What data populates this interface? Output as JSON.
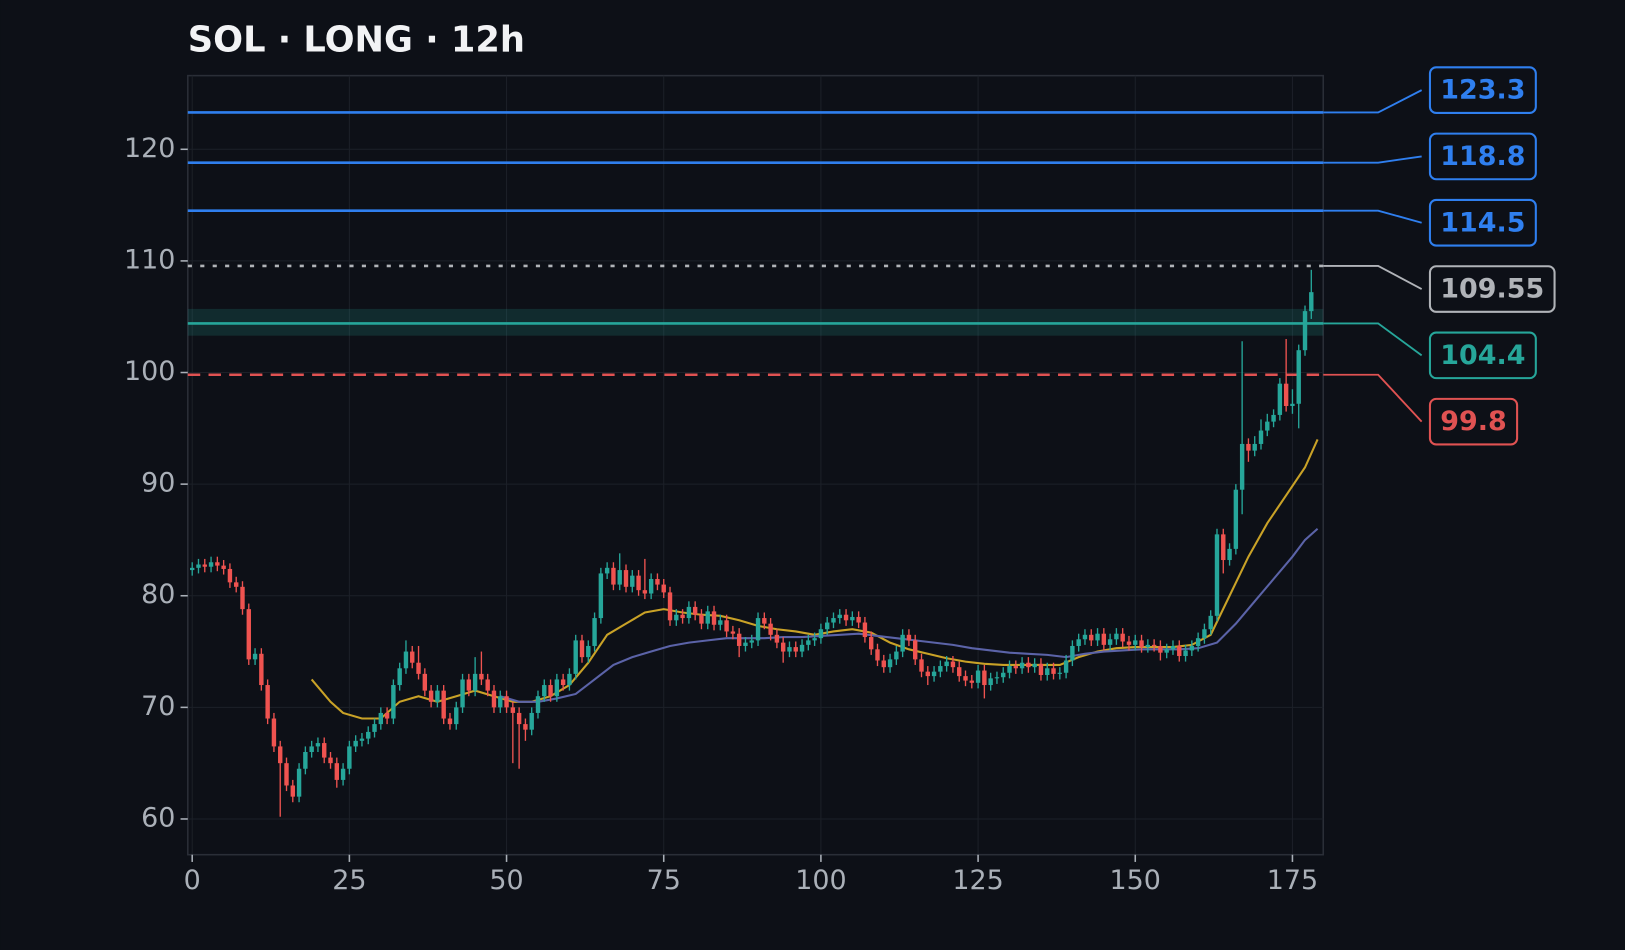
{
  "chart_data": {
    "type": "candlestick",
    "title": "SOL · LONG · 12h",
    "xlim": [
      -0.7,
      179.9
    ],
    "ylim": [
      56.8,
      126.6
    ],
    "xticks": [
      0,
      25,
      50,
      75,
      100,
      125,
      150,
      175
    ],
    "yticks": [
      60,
      70,
      80,
      90,
      100,
      110,
      120
    ],
    "grid": true,
    "up_color": "#26a69a",
    "down_color": "#ef5350",
    "x": [
      0,
      1,
      2,
      3,
      4,
      5,
      6,
      7,
      8,
      9,
      10,
      11,
      12,
      13,
      14,
      15,
      16,
      17,
      18,
      19,
      20,
      21,
      22,
      23,
      24,
      25,
      26,
      27,
      28,
      29,
      30,
      31,
      32,
      33,
      34,
      35,
      36,
      37,
      38,
      39,
      40,
      41,
      42,
      43,
      44,
      45,
      46,
      47,
      48,
      49,
      50,
      51,
      52,
      53,
      54,
      55,
      56,
      57,
      58,
      59,
      60,
      61,
      62,
      63,
      64,
      65,
      66,
      67,
      68,
      69,
      70,
      71,
      72,
      73,
      74,
      75,
      76,
      77,
      78,
      79,
      80,
      81,
      82,
      83,
      84,
      85,
      86,
      87,
      88,
      89,
      90,
      91,
      92,
      93,
      94,
      95,
      96,
      97,
      98,
      99,
      100,
      101,
      102,
      103,
      104,
      105,
      106,
      107,
      108,
      109,
      110,
      111,
      112,
      113,
      114,
      115,
      116,
      117,
      118,
      119,
      120,
      121,
      122,
      123,
      124,
      125,
      126,
      127,
      128,
      129,
      130,
      131,
      132,
      133,
      134,
      135,
      136,
      137,
      138,
      139,
      140,
      141,
      142,
      143,
      144,
      145,
      146,
      147,
      148,
      149,
      150,
      151,
      152,
      153,
      154,
      155,
      156,
      157,
      158,
      159,
      160,
      161,
      162,
      163,
      164,
      165,
      166,
      167,
      168,
      169,
      170,
      171,
      172,
      173,
      174,
      175,
      176,
      177,
      178
    ],
    "open": [
      82.3,
      82.5,
      82.8,
      82.6,
      83,
      82.7,
      82.4,
      81.2,
      80.8,
      78.8,
      74.3,
      74.8,
      72,
      69,
      66.5,
      65,
      63,
      62,
      64.5,
      66,
      66.5,
      66.8,
      65.5,
      65,
      63.5,
      64.5,
      66.5,
      67,
      67.2,
      67.8,
      68.5,
      69.5,
      69,
      72,
      73.5,
      75,
      74,
      73,
      71.5,
      70.5,
      71.5,
      69,
      68.5,
      70,
      72.5,
      71.5,
      73,
      72.5,
      71.5,
      70,
      71,
      70,
      69.5,
      68.5,
      68,
      69.5,
      71,
      72,
      71,
      72.5,
      72,
      73,
      76,
      74.5,
      75.5,
      78,
      82,
      82.5,
      81,
      82.3,
      80.8,
      81.8,
      80.5,
      80.2,
      81.5,
      81,
      80.3,
      77.8,
      78.3,
      78,
      79,
      78.3,
      77.5,
      78.6,
      77.4,
      77.8,
      76.8,
      76.6,
      75.5,
      75.8,
      76,
      78,
      77.5,
      76.5,
      75.8,
      75,
      75.4,
      75,
      75.6,
      76,
      76.2,
      77,
      77.6,
      78,
      78.3,
      77.8,
      78.1,
      77.6,
      76.3,
      75.2,
      74.2,
      73.6,
      74.3,
      75,
      76.5,
      76,
      74.3,
      73.2,
      72.8,
      73.2,
      73.7,
      74.1,
      73.6,
      72.8,
      72.4,
      72.2,
      73.3,
      72,
      72.6,
      72.7,
      73.1,
      73.7,
      73.5,
      74,
      73.6,
      73.9,
      72.9,
      73.5,
      73,
      73.1,
      74.2,
      75.5,
      76.1,
      76.5,
      76,
      76.6,
      75.6,
      76.1,
      76.6,
      75.9,
      75.6,
      76,
      75.4,
      75.6,
      75.5,
      74.9,
      75.2,
      75.5,
      74.6,
      75.1,
      75.5,
      76.2,
      77,
      78.2,
      85.5,
      83.2,
      84.2,
      89.5,
      93.6,
      93,
      93.6,
      94.8,
      95.6,
      96.2,
      99,
      97,
      97.2,
      102,
      105.5
    ],
    "high": [
      83,
      83.3,
      83.3,
      83.5,
      83.5,
      83.2,
      82.9,
      81.7,
      81.3,
      79.3,
      75.3,
      75.3,
      72.5,
      69.5,
      67,
      65.5,
      63.5,
      65,
      66.5,
      67,
      67.3,
      67.3,
      66,
      65.5,
      65,
      67,
      67.5,
      67.7,
      68.3,
      69,
      70,
      70,
      72.5,
      74,
      76,
      75.5,
      75.5,
      73.5,
      72,
      72,
      72,
      69.5,
      70.5,
      73,
      73,
      74.5,
      75,
      73,
      72,
      71.5,
      71.5,
      70.5,
      70,
      69,
      70,
      71.5,
      72.5,
      72.5,
      73,
      73,
      73.5,
      76.5,
      76.5,
      76,
      78.5,
      82.5,
      83,
      83,
      83.8,
      82.8,
      82.3,
      82.3,
      83.3,
      82,
      82,
      81.5,
      80.8,
      78.8,
      78.8,
      79.5,
      79.5,
      78.8,
      79.1,
      79.1,
      78.3,
      78.3,
      77.3,
      77.1,
      76.3,
      76.5,
      78.5,
      78.5,
      78,
      77,
      76.3,
      75.9,
      75.9,
      76.1,
      76.5,
      76.7,
      77.5,
      78.1,
      78.5,
      78.8,
      78.8,
      78.6,
      78.6,
      78.1,
      76.8,
      75.7,
      74.7,
      74.8,
      75.5,
      77,
      77,
      76.5,
      74.8,
      73.7,
      73.7,
      74.2,
      74.6,
      74.6,
      74.1,
      73.3,
      72.9,
      73.8,
      73.8,
      73.1,
      73.2,
      73.6,
      74.2,
      74.2,
      74.5,
      74.5,
      74.4,
      74.4,
      74,
      74,
      73.6,
      74.7,
      76,
      76.6,
      77,
      77,
      77.1,
      77.1,
      76.6,
      77.1,
      77.1,
      76.4,
      76.5,
      76.5,
      76.1,
      76.1,
      76,
      75.7,
      76,
      76,
      75.6,
      76,
      76.7,
      77.5,
      78.7,
      86,
      86,
      84.7,
      90,
      102.8,
      94.1,
      94.3,
      95.8,
      96.3,
      96.7,
      99.5,
      103,
      98.5,
      102.5,
      106,
      109.2
    ],
    "low": [
      81.8,
      82,
      82.1,
      82.1,
      82.2,
      81.9,
      80.7,
      80.3,
      78.3,
      73.8,
      73.8,
      71.5,
      68.5,
      66,
      60.2,
      62.5,
      61.5,
      61.5,
      64,
      65.5,
      66,
      65,
      64.5,
      62.8,
      63,
      64,
      66,
      66.5,
      66.7,
      67.3,
      68,
      68.5,
      68.5,
      71.5,
      73,
      73.5,
      72.5,
      71,
      70,
      70,
      68.5,
      68,
      68,
      69.5,
      71,
      71,
      72,
      71,
      69.5,
      69.5,
      69.5,
      65,
      64.5,
      67,
      67.5,
      69,
      70.5,
      70.5,
      70.5,
      71.5,
      71.5,
      72.5,
      74,
      74,
      75,
      77.5,
      81.5,
      80.5,
      80.5,
      80.3,
      80.3,
      80,
      79.7,
      79.7,
      80.5,
      79.8,
      77.3,
      77.3,
      77.5,
      77.5,
      77.8,
      77,
      77,
      76.9,
      76.9,
      76.3,
      76.1,
      74.5,
      75,
      75.3,
      75.5,
      77,
      76,
      75.3,
      74,
      74.5,
      74.5,
      74.5,
      75.1,
      75.5,
      75.7,
      76.5,
      77.1,
      77.5,
      77.3,
      77.3,
      77.1,
      75.8,
      74.7,
      73.7,
      73.1,
      73.1,
      73.8,
      74.5,
      75.5,
      73.8,
      72.7,
      72,
      72.3,
      72.7,
      73.2,
      73.1,
      72.3,
      71.9,
      71.7,
      71.7,
      70.8,
      71.5,
      72.1,
      72.2,
      72.6,
      73,
      73,
      73.1,
      73.1,
      72.4,
      72.4,
      72.5,
      72.5,
      72.6,
      73.7,
      75,
      75.6,
      75.5,
      75.5,
      75.1,
      75.1,
      75.6,
      75.4,
      75.1,
      75.1,
      74.9,
      74.9,
      75,
      74.2,
      74.4,
      74.7,
      74.1,
      74.1,
      74.6,
      75,
      75.7,
      76.5,
      77.7,
      82,
      82.7,
      83.7,
      87.3,
      92,
      92.5,
      93.1,
      94.3,
      95.1,
      95.7,
      96.5,
      96.3,
      95,
      101.5,
      104.8
    ],
    "close": [
      82.5,
      82.8,
      82.6,
      83,
      82.7,
      82.4,
      81.2,
      80.8,
      78.8,
      74.3,
      74.8,
      72,
      69,
      66.5,
      65,
      63,
      62,
      64.5,
      66,
      66.5,
      66.8,
      65.5,
      65,
      63.5,
      64.5,
      66.5,
      67,
      67.2,
      67.8,
      68.5,
      69.5,
      69,
      72,
      73.5,
      75,
      74,
      73,
      71.5,
      70.5,
      71.5,
      69,
      68.5,
      70,
      72.5,
      71.5,
      73,
      72.5,
      71.5,
      70,
      71,
      70,
      69.5,
      68.5,
      68,
      69.5,
      71,
      72,
      71,
      72.5,
      72,
      73,
      76,
      74.5,
      75.5,
      78,
      82,
      82.5,
      81,
      82.3,
      80.8,
      81.8,
      80.5,
      80.2,
      81.5,
      81,
      80.3,
      77.8,
      78.3,
      78,
      79,
      78.3,
      77.5,
      78.6,
      77.4,
      77.8,
      76.8,
      76.6,
      75.5,
      75.8,
      76,
      78,
      77.5,
      76.5,
      75.8,
      75,
      75.4,
      75,
      75.6,
      76,
      76.2,
      77,
      77.6,
      78,
      78.3,
      77.8,
      78.1,
      77.6,
      76.3,
      75.2,
      74.2,
      73.6,
      74.3,
      75,
      76.5,
      76,
      74.3,
      73.2,
      72.8,
      73.2,
      73.7,
      74.1,
      73.6,
      72.8,
      72.4,
      72.2,
      73.3,
      72,
      72.6,
      72.7,
      73.1,
      73.7,
      73.5,
      74,
      73.6,
      73.9,
      72.9,
      73.5,
      73,
      73.1,
      74.2,
      75.5,
      76.1,
      76.5,
      76,
      76.6,
      75.6,
      76.1,
      76.6,
      75.9,
      75.6,
      76,
      75.4,
      75.6,
      75.5,
      74.9,
      75.2,
      75.5,
      74.6,
      75.1,
      75.5,
      76.2,
      77,
      78.2,
      85.5,
      83.2,
      84.2,
      89.5,
      93.6,
      93,
      93.6,
      94.8,
      95.6,
      96.2,
      99,
      97,
      97.2,
      102,
      105.5,
      107.2
    ],
    "lines": [
      {
        "color": "#c9a227",
        "x": [
          19,
          22,
          24,
          27,
          30,
          33,
          36,
          39,
          42,
          45,
          48,
          51,
          54,
          57,
          60,
          63,
          66,
          69,
          72,
          75,
          78,
          81,
          84,
          87,
          90,
          93,
          96,
          99,
          102,
          105,
          108,
          111,
          114,
          117,
          120,
          123,
          126,
          129,
          132,
          135,
          138,
          141,
          144,
          147,
          150,
          153,
          156,
          159,
          162,
          165,
          168,
          171,
          174,
          177,
          179
        ],
        "values": [
          72.5,
          70.5,
          69.5,
          69,
          69,
          70.5,
          71,
          70.5,
          71,
          71.5,
          71,
          70.5,
          70.5,
          71,
          72,
          74,
          76.5,
          77.5,
          78.5,
          78.8,
          78.5,
          78.3,
          78.2,
          77.8,
          77.3,
          77,
          76.8,
          76.5,
          76.8,
          77,
          76.7,
          75.8,
          75.2,
          74.8,
          74.4,
          74.1,
          73.9,
          73.8,
          73.8,
          73.8,
          73.8,
          74.5,
          75,
          75.3,
          75.4,
          75.4,
          75.4,
          75.6,
          76.5,
          80,
          83.5,
          86.5,
          89,
          91.5,
          94
        ]
      },
      {
        "color": "#5b63a8",
        "x": [
          49,
          52,
          55,
          58,
          61,
          64,
          67,
          70,
          73,
          76,
          79,
          82,
          85,
          88,
          91,
          94,
          97,
          100,
          103,
          106,
          109,
          112,
          115,
          118,
          121,
          124,
          127,
          130,
          133,
          136,
          139,
          142,
          145,
          148,
          151,
          154,
          157,
          160,
          163,
          166,
          169,
          172,
          175,
          177,
          179
        ],
        "values": [
          71,
          70.5,
          70.5,
          70.8,
          71.2,
          72.5,
          73.8,
          74.5,
          75,
          75.5,
          75.8,
          76,
          76.2,
          76.2,
          76.2,
          76.3,
          76.3,
          76.4,
          76.5,
          76.6,
          76.4,
          76.2,
          76,
          75.8,
          75.6,
          75.3,
          75.1,
          74.9,
          74.8,
          74.7,
          74.5,
          74.8,
          75,
          75.1,
          75.2,
          75.2,
          75.2,
          75.3,
          75.8,
          77.5,
          79.5,
          81.5,
          83.5,
          85,
          86
        ]
      }
    ],
    "levels": [
      {
        "value": 123.3,
        "color": "#2f7fef",
        "style": "solid"
      },
      {
        "value": 118.8,
        "color": "#2f7fef",
        "style": "solid"
      },
      {
        "value": 114.5,
        "color": "#2f7fef",
        "style": "solid"
      },
      {
        "value": 109.55,
        "color": "#b0b3b8",
        "style": "dotted"
      },
      {
        "value": 104.4,
        "color": "#26a69a",
        "style": "solid",
        "band": [
          103.3,
          105.7
        ]
      },
      {
        "value": 99.8,
        "color": "#e05252",
        "style": "dashed"
      }
    ]
  }
}
